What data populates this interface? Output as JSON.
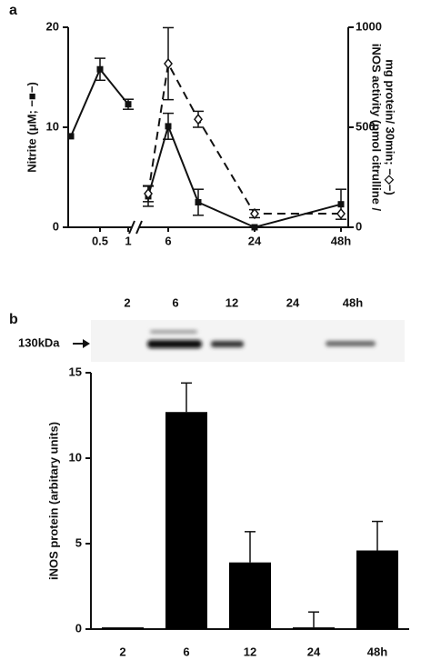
{
  "panel_labels": [
    "a",
    "b"
  ],
  "chart_data": [
    {
      "type": "line",
      "categories": [
        null,
        "0.5",
        "1",
        null,
        "6",
        null,
        "24",
        "48h"
      ],
      "ylim": [
        0,
        20
      ],
      "yticks": [
        0,
        10,
        20
      ],
      "y2lim": [
        0,
        1000
      ],
      "y2ticks": [
        0,
        500,
        1000
      ],
      "ylabel": "Nitrite (μM; −■−)",
      "y2label": [
        "iNOS activity (pmol citrulline /",
        "mg protein/ 30min; −◇−)"
      ],
      "series": [
        {
          "color": "#111111",
          "marker": "square",
          "dashed": false,
          "values": [
            9.1,
            15.8,
            12.3,
            3.1,
            10.1,
            2.5,
            0,
            2.3
          ],
          "errors": [
            null,
            1.1,
            0.5,
            1.0,
            1.3,
            1.3,
            null,
            1.5
          ]
        },
        {
          "color": "#111111",
          "marker": "diamond",
          "dashed": true,
          "axis": "y2",
          "values": [
            null,
            null,
            null,
            168,
            818,
            540,
            68,
            68
          ],
          "errors": [
            null,
            null,
            null,
            40,
            180,
            40,
            20,
            null
          ]
        }
      ]
    },
    {
      "type": "bar",
      "categories": [
        "2",
        "6",
        "12",
        "24",
        "48h"
      ],
      "values": [
        0.1,
        12.7,
        3.9,
        0.1,
        4.6
      ],
      "errors": [
        null,
        1.7,
        1.8,
        0.9,
        1.7
      ],
      "color": "#000000",
      "ylim": [
        0,
        15
      ],
      "yticks": [
        0,
        5,
        10,
        15
      ],
      "ylabel": "iNOS protein (arbitary units)"
    }
  ],
  "blot": {
    "lanes": [
      "2",
      "6",
      "12",
      "24",
      "48h"
    ],
    "marker": "130kDa"
  }
}
